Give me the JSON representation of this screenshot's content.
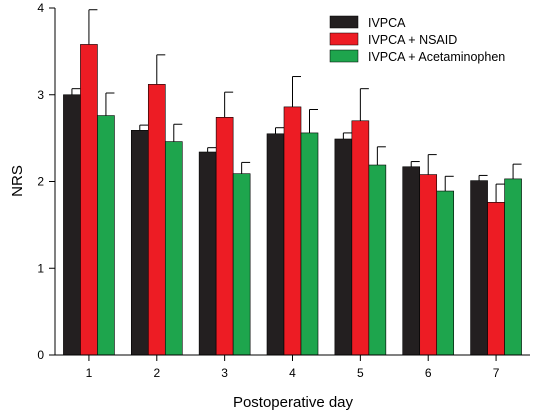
{
  "chart_data": {
    "type": "bar",
    "title": "",
    "xlabel": "Postoperative day",
    "ylabel": "NRS",
    "ylim": [
      0,
      4
    ],
    "yticks": [
      "0",
      "1",
      "2",
      "3",
      "4"
    ],
    "categories": [
      "1",
      "2",
      "3",
      "4",
      "5",
      "6",
      "7"
    ],
    "grid": false,
    "legend_position": "top-right",
    "series": [
      {
        "name": "IVPCA",
        "color": "#231f20",
        "values": [
          3.0,
          2.59,
          2.34,
          2.55,
          2.49,
          2.17,
          2.01
        ],
        "errors": [
          0.07,
          0.06,
          0.05,
          0.07,
          0.07,
          0.06,
          0.06
        ]
      },
      {
        "name": "IVPCA + NSAID",
        "color": "#ed1c24",
        "values": [
          3.58,
          3.12,
          2.74,
          2.86,
          2.7,
          2.08,
          1.76
        ],
        "errors": [
          0.4,
          0.34,
          0.29,
          0.35,
          0.37,
          0.23,
          0.21
        ]
      },
      {
        "name": "IVPCA + Acetaminophen",
        "color": "#1ea54d",
        "values": [
          2.76,
          2.46,
          2.09,
          2.56,
          2.19,
          1.89,
          2.03
        ],
        "errors": [
          0.26,
          0.2,
          0.13,
          0.27,
          0.21,
          0.17,
          0.17
        ]
      }
    ]
  }
}
